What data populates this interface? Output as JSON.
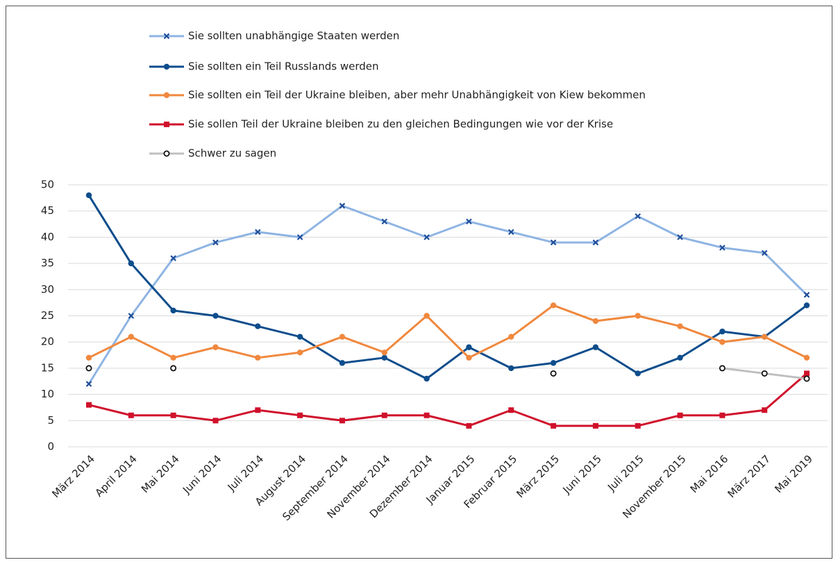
{
  "chart_data": {
    "type": "line",
    "categories": [
      "März 2014",
      "April 2014",
      "Mai 2014",
      "Juni 2014",
      "Juli 2014",
      "August 2014",
      "September 2014",
      "November 2014",
      "Dezember 2014",
      "Januar 2015",
      "Februar 2015",
      "März 2015",
      "Juni 2015",
      "Juli 2015",
      "November 2015",
      "Mai 2016",
      "März 2017",
      "Mai 2019"
    ],
    "series": [
      {
        "name": "Sie sollten unabhängige Staaten werden",
        "color": "#8eb4e3",
        "marker": "x",
        "values": [
          12,
          25,
          36,
          39,
          41,
          40,
          46,
          43,
          40,
          43,
          41,
          39,
          39,
          44,
          40,
          38,
          37,
          29
        ]
      },
      {
        "name": "Sie sollten ein Teil Russlands werden",
        "color": "#0e4d8c",
        "marker": "circle",
        "values": [
          48,
          35,
          26,
          25,
          23,
          21,
          16,
          17,
          13,
          19,
          15,
          16,
          19,
          14,
          17,
          22,
          21,
          27
        ]
      },
      {
        "name": "Sie sollten ein Teil der Ukraine bleiben, aber mehr Unabhängigkeit von Kiew bekommen",
        "color": "#f0883e",
        "marker": "circle",
        "values": [
          17,
          21,
          17,
          19,
          17,
          18,
          21,
          18,
          25,
          17,
          21,
          27,
          24,
          25,
          23,
          20,
          21,
          17
        ]
      },
      {
        "name": "Sie sollen Teil der Ukraine bleiben zu den gleichen Bedingungen wie vor der Krise",
        "color": "#d0112b",
        "marker": "square",
        "values": [
          8,
          6,
          6,
          5,
          7,
          6,
          5,
          6,
          6,
          4,
          7,
          4,
          4,
          4,
          6,
          6,
          7,
          14
        ]
      },
      {
        "name": "Schwer zu sagen",
        "color": "#bfbfbf",
        "marker": "open-circle",
        "values": [
          15,
          null,
          15,
          null,
          null,
          null,
          null,
          null,
          null,
          null,
          null,
          14,
          null,
          null,
          null,
          15,
          14,
          13
        ]
      }
    ],
    "ylim": [
      0,
      50
    ],
    "yticks": [
      0,
      5,
      10,
      15,
      20,
      25,
      30,
      35,
      40,
      45,
      50
    ],
    "grid": true,
    "legend": "top"
  }
}
